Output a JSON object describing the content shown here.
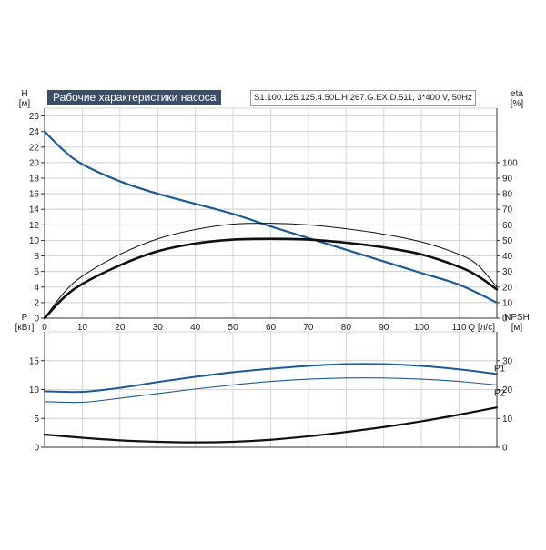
{
  "chart_data": [
    {
      "type": "line",
      "title": "Рабочие характеристики насоса",
      "subtitle": "S1.100.125.125.4.50L.H.267.G.EX.D.511, 3*400 V, 50Hz",
      "xlabel": "Q [л/с]",
      "ylabel": [
        "H",
        "[м]"
      ],
      "y2label": [
        "eta",
        "[%]"
      ],
      "xlim": [
        0,
        120
      ],
      "ylim": [
        0,
        27
      ],
      "y2lim": [
        0,
        135
      ],
      "xticks": [
        0,
        10,
        20,
        30,
        40,
        50,
        60,
        70,
        80,
        90,
        100,
        110
      ],
      "yticks": [
        0,
        2,
        4,
        6,
        8,
        10,
        12,
        14,
        16,
        18,
        20,
        22,
        24,
        26
      ],
      "y2ticks": [
        0,
        10,
        20,
        30,
        40,
        50,
        60,
        70,
        80,
        90,
        100
      ],
      "grid": true,
      "series": [
        {
          "axis": "left",
          "color": "#1d5a96",
          "x": [
            0,
            5,
            10,
            20,
            30,
            40,
            50,
            60,
            70,
            80,
            90,
            100,
            110,
            120
          ],
          "values": [
            24.0,
            21.6,
            19.8,
            17.6,
            16.0,
            14.7,
            13.4,
            11.8,
            10.3,
            8.8,
            7.3,
            5.8,
            4.3,
            2.0
          ]
        },
        {
          "axis": "right",
          "color": "#111111",
          "x": [
            0,
            5,
            10,
            20,
            30,
            40,
            50,
            60,
            70,
            80,
            90,
            100,
            110,
            115,
            120
          ],
          "values": [
            0,
            13,
            22,
            34,
            43,
            48,
            50.5,
            51,
            50.5,
            48.5,
            45.5,
            41,
            33,
            27,
            18.5
          ]
        },
        {
          "axis": "right",
          "color": "#111111",
          "x": [
            0,
            5,
            10,
            20,
            30,
            40,
            50,
            60,
            70,
            80,
            90,
            100,
            110,
            115,
            120
          ],
          "values": [
            0,
            16,
            27,
            41,
            51,
            57,
            60.5,
            61,
            60,
            57.5,
            54,
            49,
            41,
            34,
            20
          ]
        }
      ]
    },
    {
      "type": "line",
      "ylabel": [
        "P",
        "[кВт]"
      ],
      "y2label": [
        "NPSH",
        "[м]"
      ],
      "xlim": [
        0,
        120
      ],
      "ylim": [
        0,
        20
      ],
      "y2lim": [
        0,
        40
      ],
      "yticks": [
        0,
        5,
        10,
        15
      ],
      "y2ticks": [
        0,
        10,
        20,
        30
      ],
      "grid": true,
      "series": [
        {
          "name": "P1",
          "axis": "left",
          "color": "#1d5a96",
          "x": [
            0,
            10,
            20,
            30,
            40,
            50,
            60,
            70,
            80,
            90,
            100,
            110,
            120
          ],
          "values": [
            9.7,
            9.6,
            10.3,
            11.3,
            12.2,
            13.0,
            13.6,
            14.1,
            14.4,
            14.4,
            14.1,
            13.5,
            12.7
          ]
        },
        {
          "name": "P2",
          "axis": "left",
          "color": "#1d5a96",
          "x": [
            0,
            10,
            20,
            30,
            40,
            50,
            60,
            70,
            80,
            90,
            100,
            110,
            120
          ],
          "values": [
            7.9,
            7.8,
            8.5,
            9.3,
            10.1,
            10.8,
            11.4,
            11.8,
            12.0,
            12.0,
            11.8,
            11.4,
            10.8
          ]
        },
        {
          "axis": "right",
          "color": "#111111",
          "x": [
            0,
            10,
            20,
            30,
            40,
            50,
            60,
            70,
            80,
            90,
            100,
            110,
            120
          ],
          "values": [
            4.4,
            3.3,
            2.4,
            1.9,
            1.7,
            1.9,
            2.6,
            3.8,
            5.3,
            7.0,
            9.0,
            11.3,
            13.8
          ]
        }
      ]
    }
  ]
}
